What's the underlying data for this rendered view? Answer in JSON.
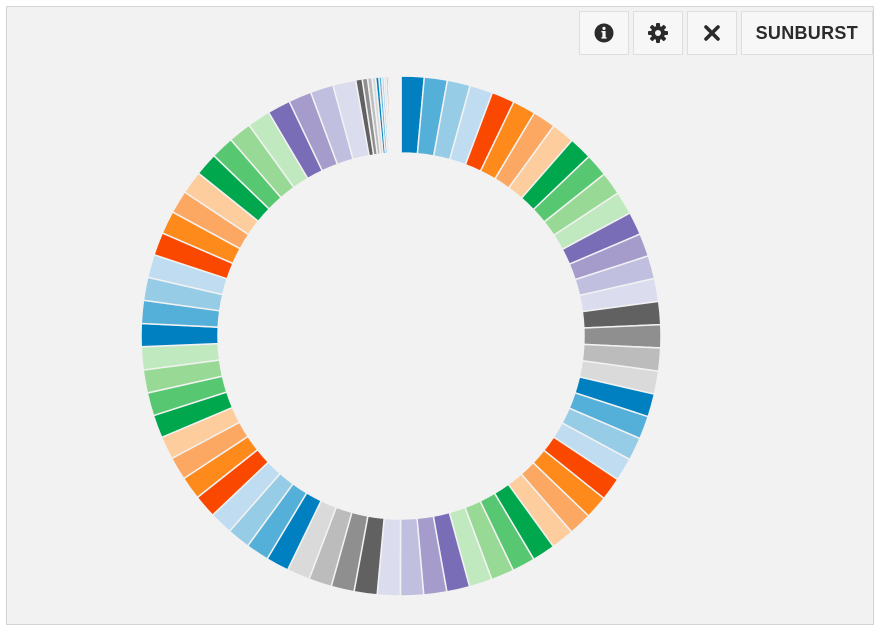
{
  "toolbar": {
    "info_icon": "info-circle-icon",
    "settings_icon": "gear-icon",
    "close_icon": "close-icon",
    "label": "SUNBURST"
  },
  "chart_data": {
    "type": "pie",
    "subtype": "sunburst-ring",
    "title": "",
    "values": [
      10,
      10,
      10,
      10,
      10,
      10,
      10,
      10,
      10,
      10,
      10,
      10,
      10,
      10,
      10,
      10,
      10,
      10,
      10,
      10,
      10,
      10,
      10,
      10,
      10,
      10,
      10,
      10,
      10,
      10,
      10,
      10,
      10,
      10,
      10,
      10,
      10,
      10,
      10,
      10,
      10,
      10,
      10,
      10,
      10,
      10,
      10,
      10,
      10,
      10,
      10,
      10,
      10,
      10,
      10,
      10,
      10,
      10,
      10,
      10,
      10,
      10,
      10,
      10,
      10,
      10,
      10,
      10,
      2.8,
      2.3,
      1.9,
      1.6,
      1.4,
      1.2,
      1.0,
      0.9,
      0.8,
      0.7,
      0.6,
      0.5,
      0.5,
      0.4,
      0.4,
      0.4,
      0.3,
      0.3,
      0.3,
      0.3,
      0.3,
      0.2,
      0.2,
      0.2
    ],
    "colors": [
      "#0080c0",
      "#55b0d9",
      "#97cce6",
      "#c0dcf0",
      "#fb4800",
      "#fd8a1b",
      "#fda862",
      "#fdcd9e",
      "#00a74d",
      "#57c871",
      "#98da95",
      "#c1e9c0",
      "#7a6db8",
      "#a69ccc",
      "#c1bfe0",
      "#dcdcef",
      "#616161",
      "#8f8f8f",
      "#bcbcbc",
      "#d9dad9",
      "#0080c0",
      "#55b0d9",
      "#97cce6",
      "#c0dcf0",
      "#fb4800",
      "#fd8a1b",
      "#fda862",
      "#fdcd9e",
      "#00a74d",
      "#57c871",
      "#98da95",
      "#c1e9c0",
      "#7a6db8",
      "#a69ccc",
      "#c1bfe0",
      "#dcdcef",
      "#616161",
      "#8f8f8f",
      "#bcbcbc",
      "#d9dad9",
      "#0080c0",
      "#55b0d9",
      "#97cce6",
      "#c0dcf0",
      "#fb4800",
      "#fd8a1b",
      "#fda862",
      "#fdcd9e",
      "#00a74d",
      "#57c871",
      "#98da95",
      "#c1e9c0"
    ],
    "background": "#f2f2f2"
  }
}
